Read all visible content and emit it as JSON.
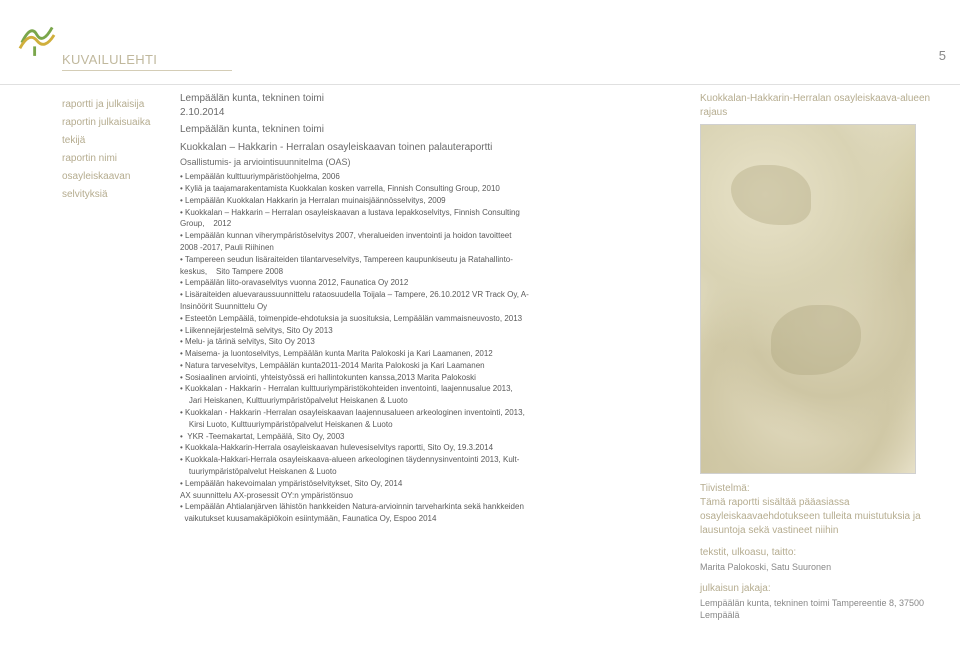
{
  "header": {
    "title": "KUVAILULEHTI",
    "page_number": "5"
  },
  "labels": {
    "l1": "raportti ja julkaisija",
    "l2": "raportin julkaisuaika",
    "l3": "tekijä",
    "l4": "raportin nimi",
    "l5": "osayleiskaavan",
    "l6": "selvityksiä"
  },
  "main": {
    "h_pub": "Lempäälän kunta, tekninen toimi",
    "date": "2.10.2014",
    "h_auth": "Lempäälän kunta, tekninen toimi",
    "h_name": "Kuokkalan – Hakkarin - Herralan osayleiskaavan toinen palauteraportti",
    "h_sub": "Osallistumis- ja arviointisuunnitelma (OAS)",
    "b": [
      "• Lempäälän kulttuuriympäristöohjelma, 2006",
      "• Kyliä ja taajamarakentamista Kuokkalan kosken varrella, Finnish Consulting Group, 2010",
      "• Lempäälän Kuokkalan Hakkarin ja Herralan muinaisjäännösselvitys, 2009",
      "• Kuokkalan – Hakkarin – Herralan osayleiskaavan a lustava lepakkoselvitys, Finnish Consulting",
      "Group,    2012",
      "• Lempäälän kunnan viherympäristöselvitys 2007, vheralueiden inventointi ja hoidon tavoitteet",
      "2008 -2017, Pauli Riihinen",
      "• Tampereen seudun lisäraiteiden tilantarveselvitys, Tampereen kaupunkiseutu ja Ratahallinto-",
      "keskus,    Sito Tampere 2008",
      "• Lempäälän liito-oravaselvitys vuonna 2012, Faunatica Oy 2012",
      "• Lisäraiteiden aluevaraussuunnittelu rataosuudella Toijala – Tampere, 26.10.2012 VR Track Oy, A-",
      "Insinöörit Suunnittelu Oy",
      "• Esteetön Lempäälä, toimenpide-ehdotuksia ja suosituksia, Lempäälän vammaisneuvosto, 2013",
      "• Liikennejärjestelmä selvitys, Sito Oy 2013",
      "• Melu- ja tärinä selvitys, Sito Oy 2013",
      "• Maisema- ja luontoselvitys, Lempäälän kunta Marita Palokoski ja Kari Laamanen, 2012",
      "• Natura tarveselvitys, Lempäälän kunta2011-2014 Marita Palokoski ja Kari Laamanen",
      "• Sosiaalinen arviointi, yhteistyössä eri hallintokunten kanssa,2013 Marita Palokoski",
      "• Kuokkalan - Hakkarin - Herralan kulttuuriympäristökohteiden inventointi, laajennusalue 2013,",
      "    Jari Heiskanen, Kulttuuriympäristöpalvelut Heiskanen & Luoto",
      "• Kuokkalan - Hakkarin -Herralan osayleiskaavan laajennusalueen arkeologinen inventointi, 2013,",
      "    Kirsi Luoto, Kulttuuriympäristöpalvelut Heiskanen & Luoto",
      "•  YKR -Teemakartat, Lempäälä, Sito Oy, 2003",
      "• Kuokkala-Hakkarin-Herrala osayleiskaavan hulevesiselvitys raportti, Sito Oy, 19.3.2014",
      "• Kuokkala-Hakkari-Herrala osayleiskaava-alueen arkeologinen täydennysinventointi 2013, Kult-",
      "    tuuriympäristöpalvelut Heiskanen & Luoto",
      "• Lempäälän hakevoimalan ympäristöselvitykset, Sito Oy, 2014",
      "AX suunnittelu AX-prosessit OY:n ympäristönsuo",
      "• Lempäälän Ahtialanjärven lähistön hankkeiden Natura-arvioinnin tarveharkinta sekä hankkeiden",
      "  vaikutukset kuusamakäpiökoin esiintymään, Faunatica Oy, Espoo 2014"
    ]
  },
  "right": {
    "head1": "Kuokkalan-Hakkarin-Herralan osayleiskaava-alueen",
    "head2": "rajaus",
    "tiiv_lbl": "Tiivistelmä:",
    "tiiv_txt": "Tämä raportti sisältää pääasiassa osayleiskaavaehdotukseen tulleita muistutuksia ja lausuntoja sekä vastineet niihin",
    "tekst_lbl": "tekstit, ulkoasu, taitto:",
    "tekst_val": "Marita Palokoski, Satu Suuronen",
    "jak_lbl": "julkaisun jakaja:",
    "jak_val": "Lempäälän kunta, tekninen toimi Tampereentie 8, 37500 Lempäälä"
  },
  "colors": {
    "label": "#b5ac8f",
    "body": "#5a5a5a",
    "accent_green": "#7aa64b",
    "accent_yellow": "#d0af3c"
  }
}
